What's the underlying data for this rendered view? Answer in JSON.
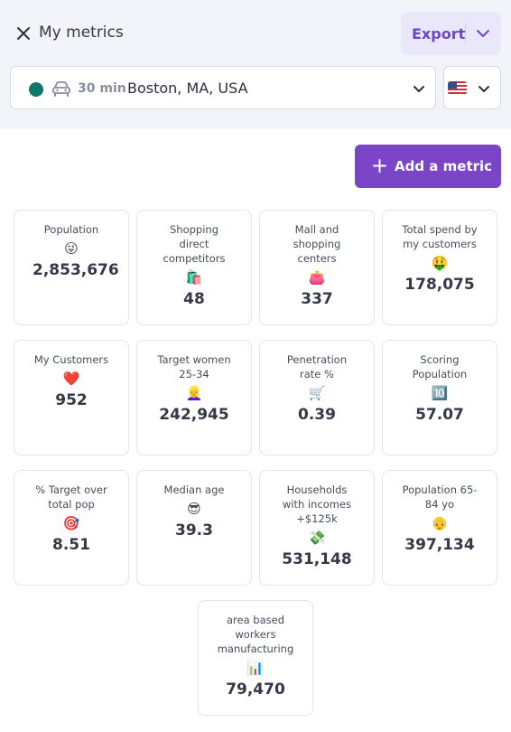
{
  "header": {
    "title": "My metrics",
    "export_label": "Export"
  },
  "location": {
    "travel_time": "30 min",
    "value": "Boston, MA, USA",
    "status_color": "#13766a"
  },
  "country": {
    "flag": "us-flag"
  },
  "actions": {
    "add_metric_label": "Add a metric"
  },
  "colors": {
    "accent": "#7a45c6",
    "accent_light": "#ebe7fb",
    "header_bg": "#f3f4f9"
  },
  "metrics": [
    {
      "label": "Population",
      "emoji": "😜",
      "value": "2,853,676"
    },
    {
      "label": "Shopping direct competitors",
      "emoji": "🛍️",
      "value": "48"
    },
    {
      "label": "Mall and shopping centers",
      "emoji": "👛",
      "value": "337"
    },
    {
      "label": "Total spend by my customers",
      "emoji": "🤑",
      "value": "178,075"
    },
    {
      "label": "My Customers",
      "emoji": "❤️",
      "value": "952"
    },
    {
      "label": "Target women 25-34",
      "emoji": "👱‍♀️",
      "value": "242,945"
    },
    {
      "label": "Penetration rate %",
      "emoji": "🛒",
      "value": "0.39"
    },
    {
      "label": "Scoring Population",
      "emoji": "🔟",
      "value": "57.07"
    },
    {
      "label": "% Target over total pop",
      "emoji": "🎯",
      "value": "8.51"
    },
    {
      "label": "Median age",
      "emoji": "😎",
      "value": "39.3"
    },
    {
      "label": "Households with incomes +$125k",
      "emoji": "💸",
      "value": "531,148"
    },
    {
      "label": "Population 65-84 yo",
      "emoji": "👴",
      "value": "397,134"
    },
    {
      "label": "area based workers manufacturing",
      "emoji": "📊",
      "value": "79,470"
    }
  ]
}
